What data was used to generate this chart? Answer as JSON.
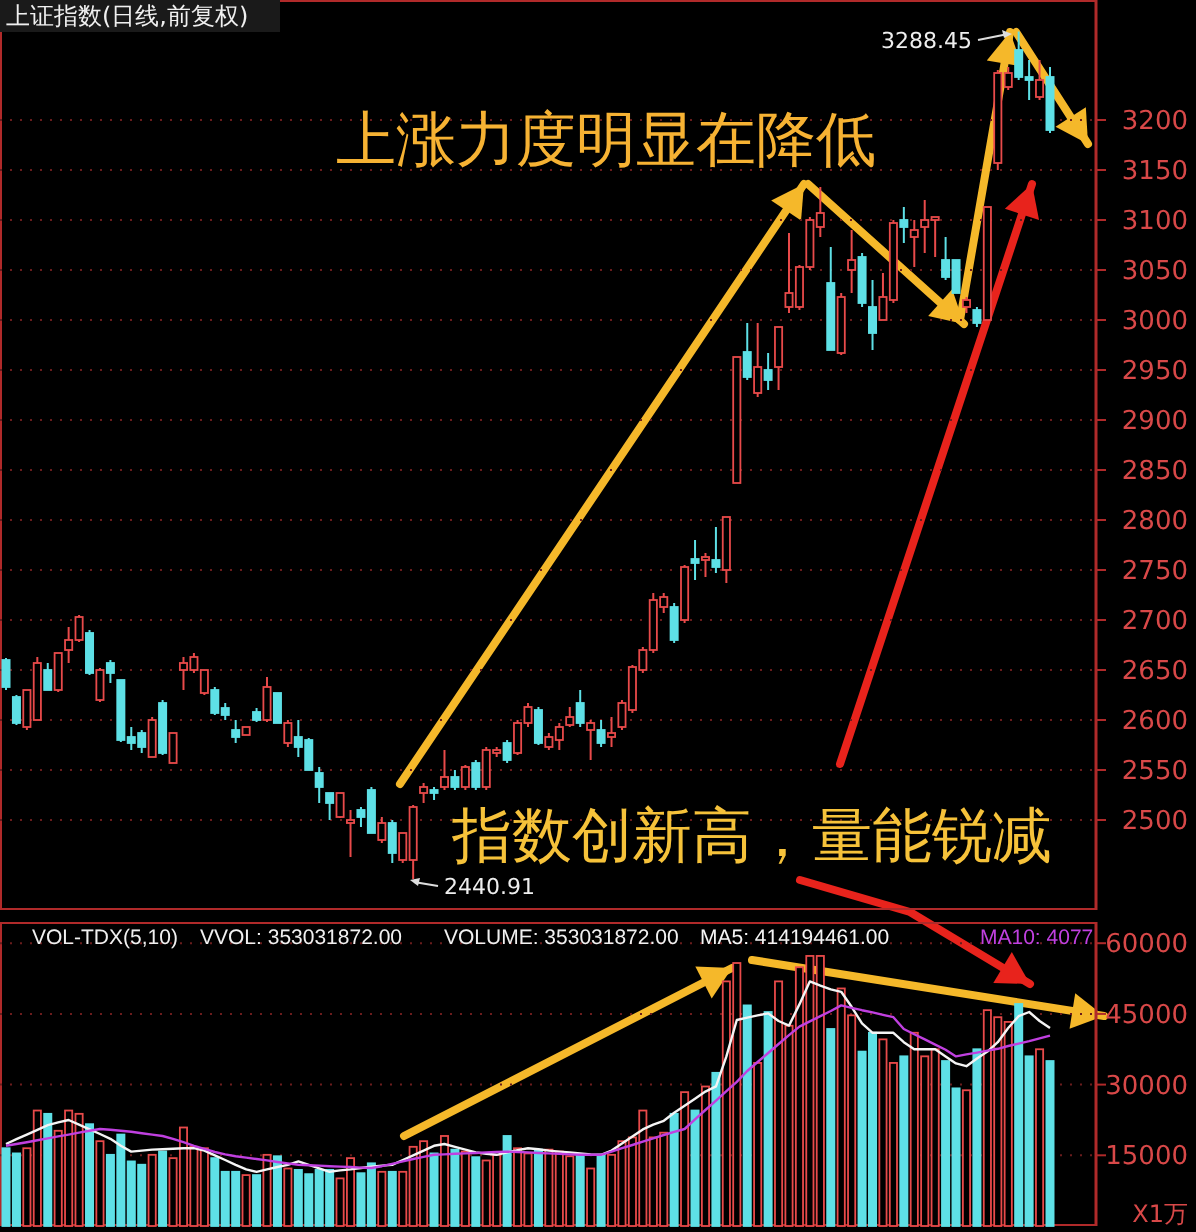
{
  "chart_data": [
    {
      "type": "candlestick",
      "title": "上证指数(日线,前复权)",
      "categories": [
        null,
        null,
        null,
        null,
        null,
        null,
        null,
        null,
        null,
        null,
        null,
        null,
        null,
        null,
        null,
        null,
        null,
        null,
        null,
        null,
        null,
        null,
        null,
        null,
        null,
        null,
        null,
        null,
        null,
        null,
        null,
        null,
        null,
        null,
        null,
        null,
        null,
        null,
        null,
        null,
        null,
        null,
        null,
        null,
        null,
        null,
        null,
        null,
        null,
        null,
        null,
        null,
        null,
        null,
        null,
        null,
        null,
        null,
        null,
        null,
        null,
        null,
        null,
        null,
        null,
        null,
        null,
        null,
        null,
        null,
        null,
        null,
        null,
        null,
        null,
        null,
        null,
        null,
        null,
        null,
        null,
        null,
        null,
        null,
        null,
        null,
        null,
        null,
        null,
        null,
        null,
        null,
        null,
        null,
        null,
        null,
        null,
        null,
        null,
        null,
        null
      ],
      "ohlc": [
        [
          2660,
          2662,
          2630,
          2633
        ],
        [
          2623,
          2625,
          2595,
          2597
        ],
        [
          2593,
          2630,
          2590,
          2630
        ],
        [
          2600,
          2663,
          2600,
          2657
        ],
        [
          2650,
          2657,
          2630,
          2630
        ],
        [
          2630,
          2667,
          2628,
          2667
        ],
        [
          2670,
          2693,
          2657,
          2680
        ],
        [
          2680,
          2705,
          2678,
          2703
        ],
        [
          2687,
          2690,
          2645,
          2647
        ],
        [
          2620,
          2652,
          2618,
          2650
        ],
        [
          2657,
          2660,
          2637,
          2647
        ],
        [
          2640,
          2640,
          2578,
          2580
        ],
        [
          2583,
          2593,
          2570,
          2577
        ],
        [
          2587,
          2590,
          2567,
          2573
        ],
        [
          2563,
          2603,
          2563,
          2600
        ],
        [
          2617,
          2620,
          2565,
          2567
        ],
        [
          2557,
          2587,
          2557,
          2587
        ],
        [
          2650,
          2663,
          2630,
          2657
        ],
        [
          2650,
          2667,
          2647,
          2663
        ],
        [
          2627,
          2650,
          2625,
          2650
        ],
        [
          2630,
          2633,
          2605,
          2607
        ],
        [
          2612,
          2617,
          2600,
          2605
        ],
        [
          2590,
          2600,
          2577,
          2583
        ],
        [
          2585,
          2593,
          2585,
          2593
        ],
        [
          2608,
          2612,
          2598,
          2600
        ],
        [
          2600,
          2643,
          2598,
          2633
        ],
        [
          2627,
          2627,
          2597,
          2597
        ],
        [
          2577,
          2600,
          2573,
          2597
        ],
        [
          2583,
          2600,
          2563,
          2573
        ],
        [
          2580,
          2582,
          2550,
          2550
        ],
        [
          2547,
          2553,
          2517,
          2533
        ],
        [
          2527,
          2527,
          2500,
          2517
        ],
        [
          2503,
          2527,
          2502,
          2527
        ],
        [
          2497,
          2510,
          2463,
          2500
        ],
        [
          2510,
          2513,
          2493,
          2503
        ],
        [
          2530,
          2533,
          2487,
          2487
        ],
        [
          2480,
          2503,
          2477,
          2497
        ],
        [
          2497,
          2500,
          2457,
          2467
        ],
        [
          2460,
          2487,
          2457,
          2487
        ],
        [
          2460,
          2515,
          2440.91,
          2513
        ],
        [
          2527,
          2537,
          2517,
          2533
        ],
        [
          2530,
          2533,
          2520,
          2527
        ],
        [
          2533,
          2570,
          2530,
          2543
        ],
        [
          2543,
          2550,
          2530,
          2533
        ],
        [
          2533,
          2555,
          2530,
          2553
        ],
        [
          2557,
          2560,
          2530,
          2533
        ],
        [
          2533,
          2573,
          2530,
          2570
        ],
        [
          2567,
          2573,
          2563,
          2570
        ],
        [
          2577,
          2580,
          2557,
          2560
        ],
        [
          2567,
          2600,
          2565,
          2597
        ],
        [
          2597,
          2617,
          2593,
          2613
        ],
        [
          2610,
          2613,
          2575,
          2577
        ],
        [
          2573,
          2587,
          2570,
          2583
        ],
        [
          2580,
          2597,
          2570,
          2593
        ],
        [
          2595,
          2613,
          2593,
          2603
        ],
        [
          2617,
          2630,
          2593,
          2597
        ],
        [
          2590,
          2600,
          2560,
          2597
        ],
        [
          2590,
          2600,
          2573,
          2577
        ],
        [
          2583,
          2603,
          2573,
          2587
        ],
        [
          2593,
          2620,
          2590,
          2617
        ],
        [
          2610,
          2655,
          2607,
          2653
        ],
        [
          2650,
          2673,
          2647,
          2670
        ],
        [
          2670,
          2727,
          2667,
          2720
        ],
        [
          2713,
          2727,
          2707,
          2723
        ],
        [
          2713,
          2717,
          2677,
          2680
        ],
        [
          2700,
          2755,
          2697,
          2753
        ],
        [
          2761,
          2780,
          2740,
          2757
        ],
        [
          2760,
          2767,
          2743,
          2763
        ],
        [
          2760,
          2793,
          2747,
          2753
        ],
        [
          2750,
          2803,
          2737,
          2803
        ],
        [
          2837,
          2963,
          2837,
          2963
        ],
        [
          2968,
          2997,
          2940,
          2943
        ],
        [
          2927,
          2997,
          2923,
          2953
        ],
        [
          2950,
          2967,
          2930,
          2940
        ],
        [
          2953,
          2993,
          2930,
          2993
        ],
        [
          3013,
          3087,
          3007,
          3027
        ],
        [
          3013,
          3055,
          3010,
          3053
        ],
        [
          3053,
          3103,
          3050,
          3100
        ],
        [
          3093,
          3133,
          3083,
          3107
        ],
        [
          3037,
          3073,
          2970,
          2970
        ],
        [
          2967,
          3027,
          2965,
          3023
        ],
        [
          3050,
          3090,
          3027,
          3060
        ],
        [
          3063,
          3067,
          3013,
          3017
        ],
        [
          3013,
          3040,
          2970,
          2987
        ],
        [
          3000,
          3047,
          3000,
          3023
        ],
        [
          3020,
          3100,
          3017,
          3097
        ],
        [
          3100,
          3113,
          3077,
          3093
        ],
        [
          3083,
          3100,
          3053,
          3090
        ],
        [
          3093,
          3120,
          3067,
          3100
        ],
        [
          3100,
          3103,
          3063,
          3103
        ],
        [
          3060,
          3083,
          3040,
          3043
        ],
        [
          3060,
          3060,
          3027,
          3027
        ],
        [
          3013,
          3023,
          3007,
          3020
        ],
        [
          3010,
          3013,
          2993,
          2997
        ],
        [
          3000,
          3113,
          3000,
          3113
        ],
        [
          3157,
          3250,
          3150,
          3247
        ],
        [
          3233,
          3253,
          3230,
          3247
        ],
        [
          3270,
          3288.45,
          3240,
          3243
        ],
        [
          3243,
          3260,
          3220,
          3240
        ],
        [
          3223,
          3260,
          3220,
          3240
        ],
        [
          3243,
          3253,
          3187,
          3190
        ]
      ],
      "colors": [
        "#5ee0e6",
        "#5ee0e6",
        "#e84a4a",
        "#e84a4a",
        "#5ee0e6",
        "#e84a4a",
        "#e84a4a",
        "#e84a4a",
        "#5ee0e6",
        "#e84a4a",
        "#5ee0e6",
        "#5ee0e6",
        "#5ee0e6",
        "#5ee0e6",
        "#e84a4a",
        "#5ee0e6",
        "#e84a4a",
        "#e84a4a",
        "#e84a4a",
        "#e84a4a",
        "#5ee0e6",
        "#5ee0e6",
        "#5ee0e6",
        "#e84a4a",
        "#5ee0e6",
        "#e84a4a",
        "#5ee0e6",
        "#e84a4a",
        "#5ee0e6",
        "#5ee0e6",
        "#5ee0e6",
        "#5ee0e6",
        "#e84a4a",
        "#e84a4a",
        "#5ee0e6",
        "#5ee0e6",
        "#e84a4a",
        "#5ee0e6",
        "#e84a4a",
        "#e84a4a",
        "#e84a4a",
        "#5ee0e6",
        "#e84a4a",
        "#5ee0e6",
        "#e84a4a",
        "#5ee0e6",
        "#e84a4a",
        "#e84a4a",
        "#5ee0e6",
        "#e84a4a",
        "#e84a4a",
        "#5ee0e6",
        "#e84a4a",
        "#e84a4a",
        "#e84a4a",
        "#5ee0e6",
        "#e84a4a",
        "#5ee0e6",
        "#e84a4a",
        "#e84a4a",
        "#e84a4a",
        "#e84a4a",
        "#e84a4a",
        "#e84a4a",
        "#5ee0e6",
        "#e84a4a",
        "#5ee0e6",
        "#e84a4a",
        "#5ee0e6",
        "#e84a4a",
        "#e84a4a",
        "#5ee0e6",
        "#e84a4a",
        "#5ee0e6",
        "#e84a4a",
        "#e84a4a",
        "#e84a4a",
        "#e84a4a",
        "#e84a4a",
        "#5ee0e6",
        "#e84a4a",
        "#e84a4a",
        "#5ee0e6",
        "#5ee0e6",
        "#e84a4a",
        "#e84a4a",
        "#5ee0e6",
        "#e84a4a",
        "#e84a4a",
        "#e84a4a",
        "#5ee0e6",
        "#5ee0e6",
        "#e84a4a",
        "#5ee0e6",
        "#e84a4a",
        "#e84a4a",
        "#e84a4a",
        "#5ee0e6",
        "#5ee0e6",
        "#e84a4a",
        "#5ee0e6"
      ],
      "ylim": [
        2410,
        3320
      ],
      "yticks": [
        2500,
        2550,
        2600,
        2650,
        2700,
        2750,
        2800,
        2850,
        2900,
        2950,
        3000,
        3050,
        3100,
        3150,
        3200
      ],
      "tick_labels": "y",
      "grid": "y",
      "annotations": [
        "上涨力度明显在降低",
        "指数创新高，量能锐减",
        "3288.45",
        "2440.91"
      ]
    },
    {
      "type": "bar",
      "ylabel": "X1万",
      "categories": [
        null,
        null,
        null,
        null,
        null,
        null,
        null,
        null,
        null,
        null,
        null,
        null,
        null,
        null,
        null,
        null,
        null,
        null,
        null,
        null,
        null,
        null,
        null,
        null,
        null,
        null,
        null,
        null,
        null,
        null,
        null,
        null,
        null,
        null,
        null,
        null,
        null,
        null,
        null,
        null,
        null,
        null,
        null,
        null,
        null,
        null,
        null,
        null,
        null,
        null,
        null,
        null,
        null,
        null,
        null,
        null,
        null,
        null,
        null,
        null,
        null,
        null,
        null,
        null,
        null,
        null,
        null,
        null,
        null,
        null,
        null,
        null,
        null,
        null,
        null,
        null,
        null,
        null,
        null,
        null,
        null,
        null,
        null,
        null,
        null,
        null,
        null,
        null,
        null,
        null,
        null,
        null,
        null,
        null,
        null,
        null,
        null,
        null,
        null,
        null,
        null
      ],
      "values": [
        16500,
        15400,
        16500,
        24500,
        23800,
        20200,
        24500,
        23800,
        21600,
        18000,
        15100,
        19400,
        13700,
        13000,
        15100,
        15800,
        14400,
        20900,
        16800,
        16500,
        14400,
        11500,
        11500,
        10800,
        10800,
        15100,
        14800,
        12200,
        11900,
        11000,
        11900,
        11900,
        10100,
        14400,
        11200,
        13300,
        11500,
        11500,
        11500,
        16800,
        18000,
        15400,
        19100,
        16200,
        15800,
        14600,
        13900,
        15100,
        19100,
        16500,
        15400,
        16200,
        16200,
        15800,
        14800,
        15100,
        12200,
        15100,
        15100,
        18000,
        18800,
        24500,
        18800,
        19800,
        23800,
        28400,
        24500,
        29600,
        32500,
        51900,
        55800,
        46800,
        34600,
        45400,
        51900,
        42500,
        54900,
        57300,
        57300,
        41800,
        50400,
        44700,
        37000,
        41000,
        39600,
        34600,
        36000,
        41000,
        36000,
        37500,
        35000,
        29200,
        28800,
        37500,
        45800,
        44300,
        43300,
        47100,
        36000,
        37500,
        35000
      ],
      "series": [
        {
          "type": "line",
          "color": "#f4f4f4",
          "values": [
            17400,
            18400,
            19400,
            20400,
            21400,
            22000,
            22500,
            21500,
            20500,
            19500,
            18500,
            17000,
            15800,
            16000,
            16200,
            16300,
            16400,
            16500,
            16500,
            16000,
            15000,
            14000,
            13000,
            12000,
            11500,
            12000,
            12500,
            13000,
            13700,
            13000,
            12200,
            11500,
            11800,
            12000,
            12300,
            12600,
            12800,
            13000,
            14000,
            15000,
            16000,
            17000,
            17400,
            16800,
            16200,
            15600,
            15300,
            15100,
            15600,
            16100,
            16500,
            16300,
            16000,
            15800,
            15600,
            15400,
            15200,
            15100,
            16000,
            17500,
            19000,
            20500,
            21500,
            22300,
            24000,
            25500,
            27000,
            28500,
            29600,
            36000,
            43700,
            44200,
            44700,
            45100,
            43500,
            42500,
            47000,
            51900,
            51000,
            50200,
            49700,
            46500,
            43000,
            41000,
            41000,
            41000,
            39000,
            37500,
            37500,
            37500,
            36000,
            34500,
            33900,
            35500,
            37000,
            39000,
            42000,
            44500,
            45400,
            43500,
            42000
          ]
        },
        {
          "type": "line",
          "color": "#c040e0",
          "values": [
            17000,
            17400,
            17800,
            18200,
            18600,
            19000,
            19400,
            19800,
            20200,
            20600,
            20400,
            20200,
            20000,
            19700,
            19400,
            19100,
            18500,
            17800,
            17000,
            16400,
            15700,
            15200,
            14800,
            14500,
            14200,
            13900,
            13600,
            13300,
            13000,
            12900,
            12800,
            12700,
            12600,
            12500,
            12400,
            12300,
            12700,
            13200,
            13700,
            14200,
            14700,
            15100,
            15200,
            15300,
            15400,
            15500,
            15600,
            15700,
            15800,
            15700,
            15600,
            15500,
            15400,
            15300,
            15200,
            15100,
            15100,
            15100,
            15800,
            16500,
            17200,
            17900,
            18600,
            19300,
            20000,
            20600,
            22600,
            24600,
            26600,
            28600,
            30600,
            32900,
            34800,
            36700,
            38600,
            40500,
            42300,
            43400,
            44500,
            45600,
            46800,
            46300,
            45800,
            45300,
            44800,
            44300,
            41800,
            40700,
            39600,
            38500,
            37400,
            36000,
            36400,
            36800,
            37200,
            37600,
            38200,
            38700,
            39200,
            39800,
            40400
          ]
        }
      ],
      "colors": [
        "#5ee0e6",
        "#5ee0e6",
        "#e84a4a",
        "#e84a4a",
        "#5ee0e6",
        "#e84a4a",
        "#e84a4a",
        "#e84a4a",
        "#5ee0e6",
        "#e84a4a",
        "#5ee0e6",
        "#5ee0e6",
        "#5ee0e6",
        "#5ee0e6",
        "#e84a4a",
        "#5ee0e6",
        "#e84a4a",
        "#e84a4a",
        "#e84a4a",
        "#e84a4a",
        "#5ee0e6",
        "#5ee0e6",
        "#5ee0e6",
        "#e84a4a",
        "#5ee0e6",
        "#e84a4a",
        "#5ee0e6",
        "#e84a4a",
        "#5ee0e6",
        "#5ee0e6",
        "#5ee0e6",
        "#5ee0e6",
        "#e84a4a",
        "#e84a4a",
        "#5ee0e6",
        "#5ee0e6",
        "#e84a4a",
        "#5ee0e6",
        "#e84a4a",
        "#e84a4a",
        "#e84a4a",
        "#5ee0e6",
        "#e84a4a",
        "#5ee0e6",
        "#e84a4a",
        "#5ee0e6",
        "#e84a4a",
        "#e84a4a",
        "#5ee0e6",
        "#e84a4a",
        "#e84a4a",
        "#5ee0e6",
        "#e84a4a",
        "#e84a4a",
        "#e84a4a",
        "#5ee0e6",
        "#e84a4a",
        "#5ee0e6",
        "#e84a4a",
        "#e84a4a",
        "#e84a4a",
        "#e84a4a",
        "#e84a4a",
        "#e84a4a",
        "#5ee0e6",
        "#e84a4a",
        "#5ee0e6",
        "#e84a4a",
        "#5ee0e6",
        "#e84a4a",
        "#e84a4a",
        "#5ee0e6",
        "#e84a4a",
        "#5ee0e6",
        "#e84a4a",
        "#e84a4a",
        "#e84a4a",
        "#e84a4a",
        "#e84a4a",
        "#5ee0e6",
        "#e84a4a",
        "#e84a4a",
        "#5ee0e6",
        "#5ee0e6",
        "#e84a4a",
        "#e84a4a",
        "#5ee0e6",
        "#e84a4a",
        "#e84a4a",
        "#e84a4a",
        "#5ee0e6",
        "#5ee0e6",
        "#e84a4a",
        "#5ee0e6",
        "#e84a4a",
        "#e84a4a",
        "#e84a4a",
        "#5ee0e6",
        "#5ee0e6",
        "#e84a4a",
        "#5ee0e6"
      ],
      "ylim": [
        0,
        64500
      ],
      "yticks": [
        15000,
        30000,
        45000,
        60000
      ],
      "tick_labels": "y",
      "grid": "y",
      "annotations": [
        "VOL-TDX(5,10)",
        "VVOL: 353031872.00",
        "VOLUME: 353031872.00",
        "MA5: 414194461.00",
        "MA10: 4077"
      ]
    }
  ]
}
